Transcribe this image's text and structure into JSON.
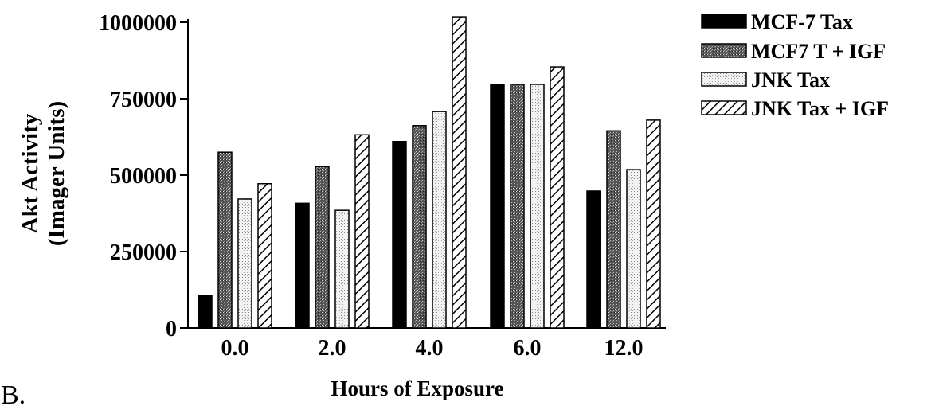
{
  "panel_label": "B.",
  "chart_data": {
    "type": "bar",
    "categories": [
      "0.0",
      "2.0",
      "4.0",
      "6.0",
      "12.0"
    ],
    "series": [
      {
        "name": "MCF-7 Tax",
        "values": [
          105000,
          408000,
          610000,
          795000,
          448000
        ],
        "pattern": "solid-black"
      },
      {
        "name": "MCF7 T + IGF",
        "values": [
          575000,
          528000,
          662000,
          797000,
          645000
        ],
        "pattern": "dark-stipple"
      },
      {
        "name": "JNK Tax",
        "values": [
          422000,
          385000,
          708000,
          797000,
          518000
        ],
        "pattern": "light-dots"
      },
      {
        "name": "JNK Tax + IGF",
        "values": [
          472000,
          632000,
          1018000,
          854000,
          680000
        ],
        "pattern": "diagonal-hatch"
      }
    ],
    "ylabel_line1": "Akt Activity",
    "ylabel_line2": "(Imager Units)",
    "xlabel": "Hours of Exposure",
    "ylim": [
      0,
      1000000
    ],
    "yticks": [
      0,
      250000,
      500000,
      750000,
      1000000
    ],
    "ytick_labels": [
      "0",
      "250000",
      "500000",
      "750000",
      "1000000"
    ],
    "legend_position": "top-right",
    "grid": false
  }
}
